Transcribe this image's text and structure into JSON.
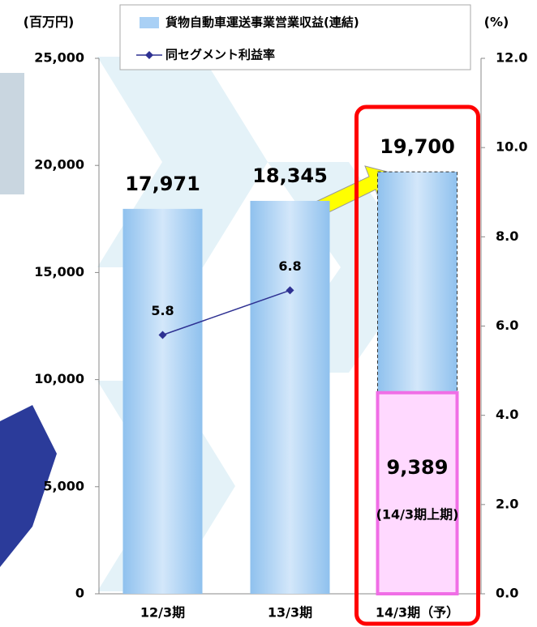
{
  "chart_data": {
    "type": "bar",
    "y_unit": "(百万円)",
    "y2_unit": "(%)",
    "categories": [
      "12/3期",
      "13/3期",
      "14/3期（予）"
    ],
    "series": [
      {
        "name": "貨物自動車運送事業営業収益(連結)",
        "type": "bar",
        "color": "#a9d0f5",
        "values": [
          17971,
          18345,
          19700
        ],
        "value_labels": [
          "17,971",
          "18,345",
          "19,700"
        ]
      },
      {
        "name": "同セグメント利益率",
        "type": "line",
        "axis": "y2",
        "color": "#2e3192",
        "values": [
          5.8,
          6.8,
          null
        ]
      }
    ],
    "first_half": {
      "value": 9389,
      "value_label": "9,389",
      "label": "(14/3期上期)",
      "color": "#ffd9ff",
      "border": "#f06ee6"
    },
    "highlight_color": "#ff0000",
    "ylim": [
      0,
      25000
    ],
    "yticks": [
      0,
      {
        "value": 5000,
        "label": "5,000"
      },
      {
        "value": 10000,
        "label": "10,000"
      },
      {
        "value": 15000,
        "label": "15,000"
      },
      {
        "value": 20000,
        "label": "20,000"
      },
      {
        "value": 25000,
        "label": "25,000"
      }
    ],
    "y2lim": [
      0,
      12
    ],
    "y2ticks": [
      {
        "value": 0,
        "label": "0.0"
      },
      {
        "value": 2,
        "label": "2.0"
      },
      {
        "value": 4,
        "label": "4.0"
      },
      {
        "value": 6,
        "label": "6.0"
      },
      {
        "value": 8,
        "label": "8.0"
      },
      {
        "value": 10,
        "label": "10.0"
      },
      {
        "value": 12,
        "label": "12.0"
      }
    ]
  }
}
